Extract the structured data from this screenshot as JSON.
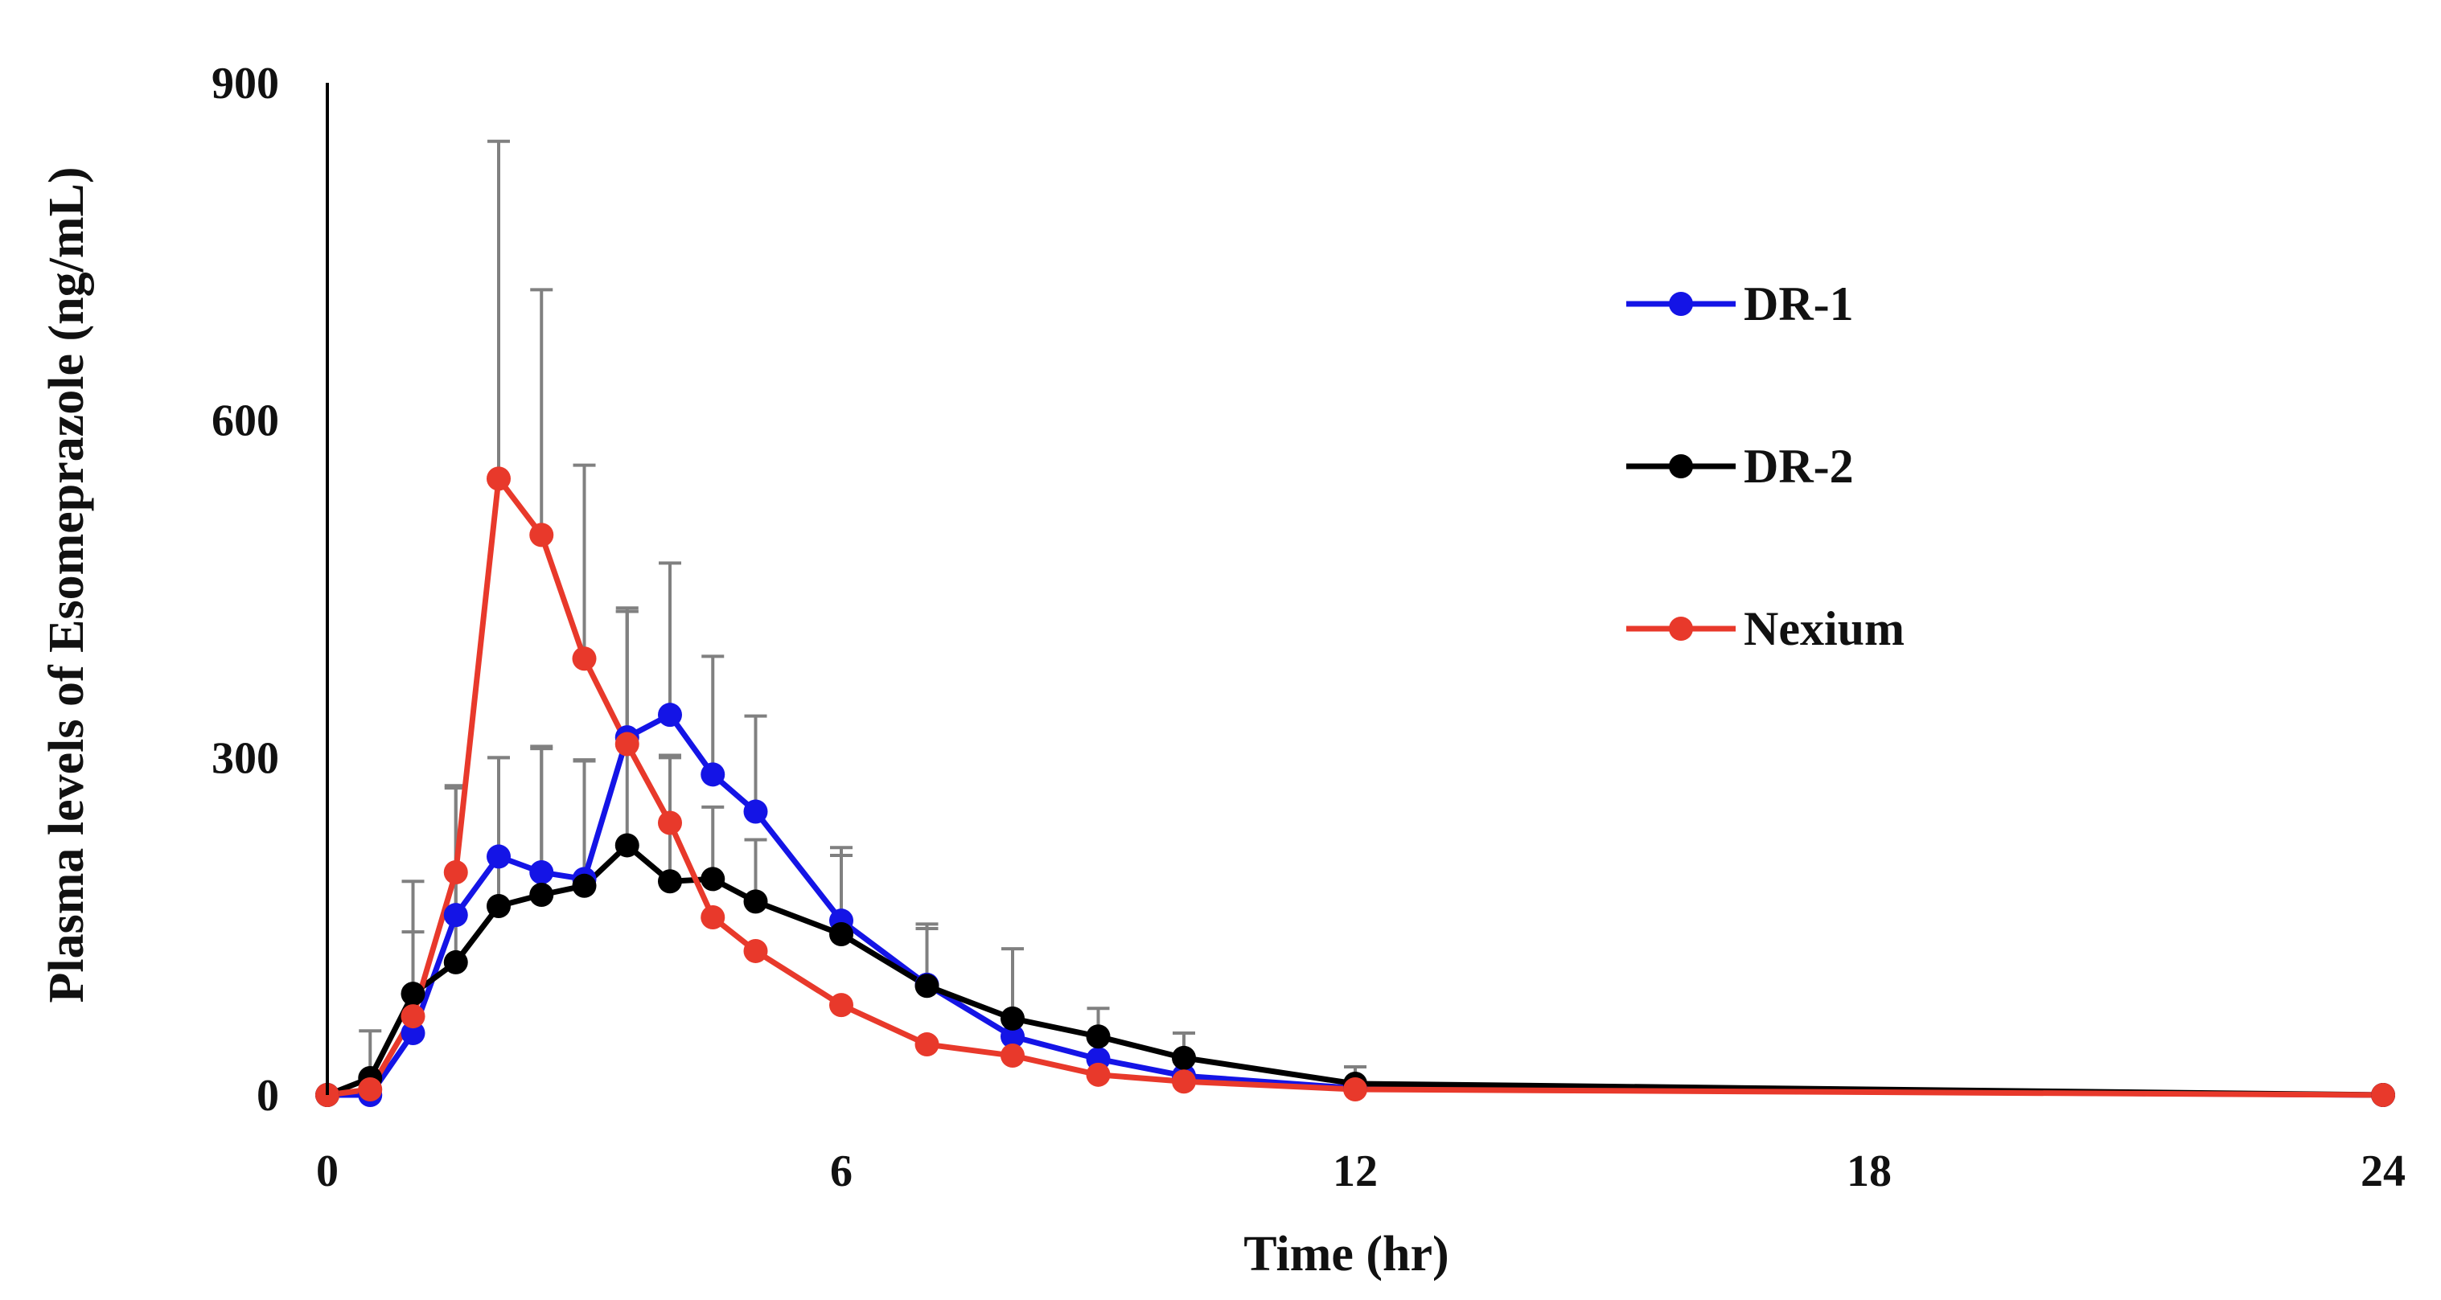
{
  "chart_data": {
    "type": "line",
    "title": "",
    "xlabel": "Time (hr)",
    "ylabel": "Plasma levels of Esomeprazole (ng/mL)",
    "xlim": [
      0,
      24
    ],
    "ylim": [
      0,
      900
    ],
    "xticks": [
      0,
      6,
      12,
      18,
      24
    ],
    "yticks": [
      0,
      300,
      600,
      900
    ],
    "grid": false,
    "legend_position": "right",
    "error_bar_color": "#808080",
    "series": [
      {
        "name": "DR-1",
        "color": "#1414E6",
        "x": [
          0,
          0.5,
          1,
          1.5,
          2,
          2.5,
          3,
          3.5,
          4,
          4.5,
          5,
          6,
          7,
          8,
          9,
          10,
          12,
          24
        ],
        "y": [
          0,
          0,
          55,
          160,
          212,
          198,
          192,
          318,
          338,
          285,
          252,
          155,
          98,
          52,
          32,
          17,
          6,
          0
        ],
        "err": [
          0,
          0,
          90,
          115,
          88,
          110,
          105,
          115,
          135,
          105,
          85,
          65,
          50,
          0,
          0,
          0,
          0,
          0
        ]
      },
      {
        "name": "DR-2",
        "color": "#000000",
        "x": [
          0,
          0.5,
          1,
          1.5,
          2,
          2.5,
          3,
          3.5,
          4,
          4.5,
          5,
          6,
          7,
          8,
          9,
          10,
          12,
          24
        ],
        "y": [
          0,
          15,
          90,
          118,
          168,
          178,
          186,
          222,
          190,
          192,
          172,
          143,
          97,
          68,
          52,
          33,
          10,
          0
        ],
        "err": [
          0,
          42,
          100,
          155,
          132,
          132,
          112,
          208,
          110,
          64,
          55,
          70,
          55,
          62,
          25,
          22,
          15,
          0
        ]
      },
      {
        "name": "Nexium",
        "color": "#E8392B",
        "x": [
          0,
          0.5,
          1,
          1.5,
          2,
          2.5,
          3,
          3.5,
          4,
          4.5,
          5,
          6,
          7,
          8,
          9,
          10,
          12,
          24
        ],
        "y": [
          0,
          5,
          70,
          198,
          548,
          498,
          388,
          312,
          242,
          158,
          128,
          80,
          45,
          35,
          18,
          12,
          5,
          0
        ],
        "err": [
          0,
          0,
          0,
          0,
          300,
          218,
          172,
          118,
          60,
          0,
          0,
          0,
          0,
          0,
          0,
          0,
          0,
          0
        ]
      }
    ]
  }
}
